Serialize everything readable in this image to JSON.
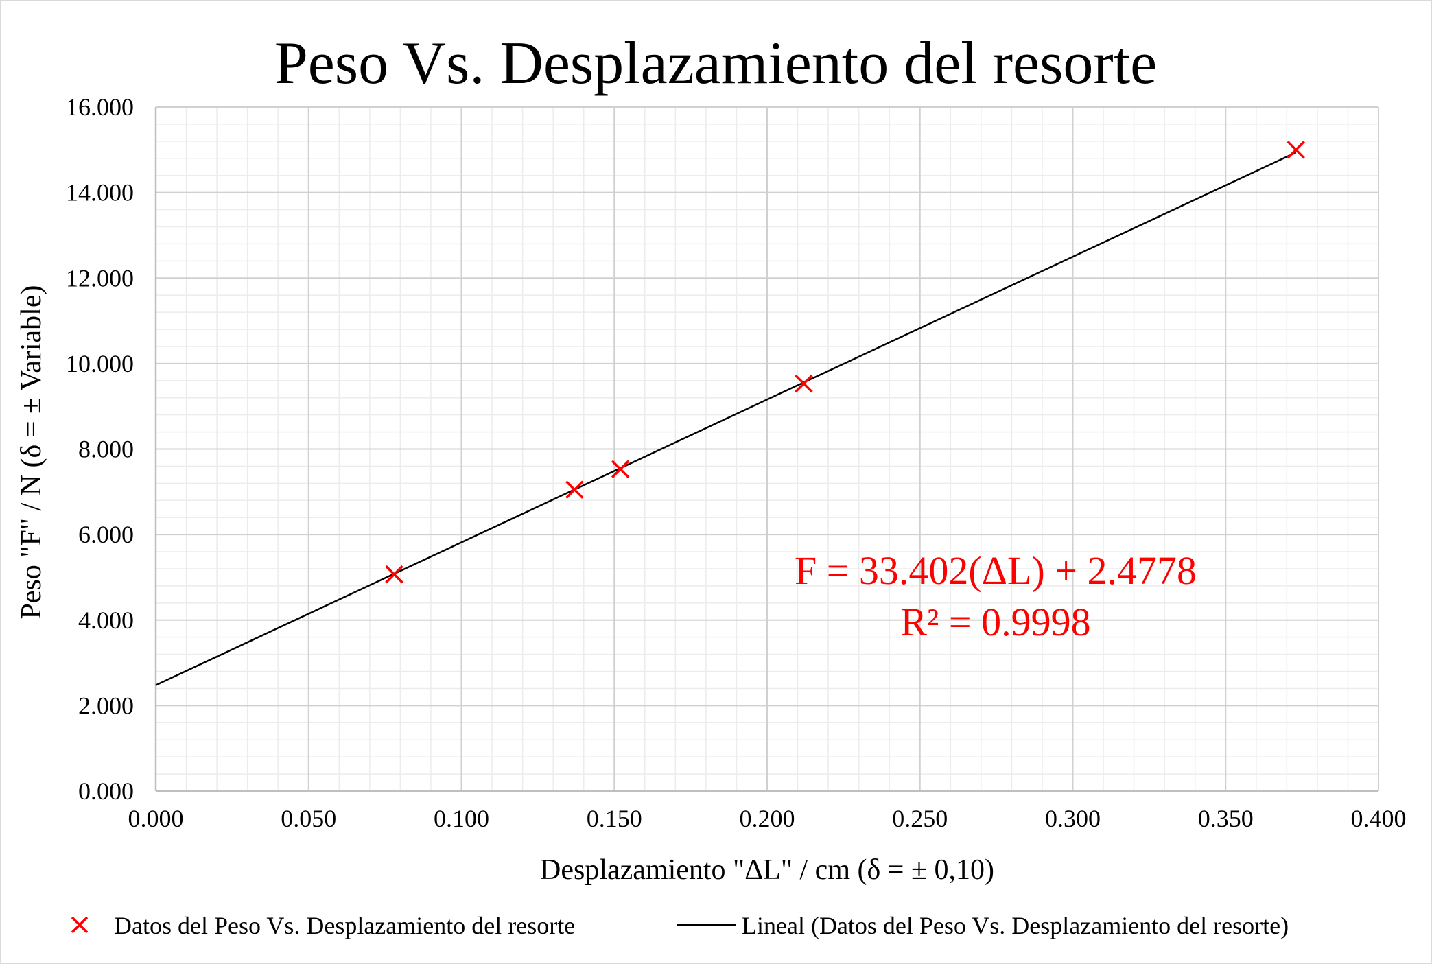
{
  "chart_data": {
    "type": "scatter",
    "title": "Peso Vs. Desplazamiento del resorte",
    "xlabel": "Desplazamiento \"ΔL\" / cm (δ = ± 0,10)",
    "ylabel": "Peso \"F\" / N (δ = ± Variable)",
    "xlim": [
      0,
      0.4
    ],
    "ylim": [
      0,
      16
    ],
    "x_ticks": [
      "0.000",
      "0.050",
      "0.100",
      "0.150",
      "0.200",
      "0.250",
      "0.300",
      "0.350",
      "0.400"
    ],
    "y_ticks": [
      "0.000",
      "2.000",
      "4.000",
      "6.000",
      "8.000",
      "10.000",
      "12.000",
      "14.000",
      "16.000"
    ],
    "grid": true,
    "series": [
      {
        "name": "Datos del Peso Vs. Desplazamiento del resorte",
        "marker": "x",
        "color": "#ff0000",
        "x": [
          0.078,
          0.137,
          0.152,
          0.212,
          0.373
        ],
        "y": [
          5.07,
          7.05,
          7.53,
          9.53,
          15.0
        ]
      }
    ],
    "trendline": {
      "name": "Lineal (Datos del Peso Vs. Desplazamiento del resorte)",
      "color": "#000000",
      "slope": 33.402,
      "intercept": 2.4778,
      "equation_text": "F = 33.402(ΔL) + 2.4778",
      "r2_text": "R² = 0.9998"
    },
    "legend_placement": "bottom"
  }
}
